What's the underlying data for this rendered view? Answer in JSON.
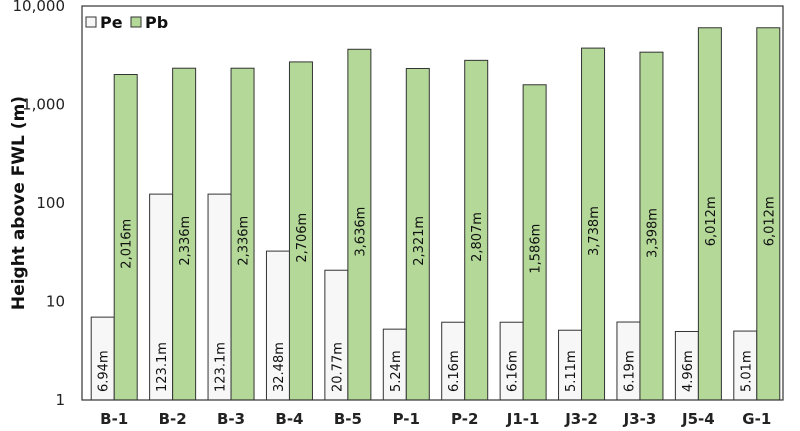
{
  "chart_data": {
    "type": "bar",
    "title": "",
    "xlabel": "",
    "ylabel": "Height above FWL (m)",
    "yscale": "log",
    "ylim": [
      1,
      10000
    ],
    "y_ticks": [
      "1",
      "10",
      "100",
      "1,000",
      "10,000"
    ],
    "grid": false,
    "legend_position": "top-left inside",
    "categories": [
      "B-1",
      "B-2",
      "B-3",
      "B-4",
      "B-5",
      "P-1",
      "P-2",
      "J1-1",
      "J3-2",
      "J3-3",
      "J5-4",
      "G-1"
    ],
    "series": [
      {
        "name": "Pe",
        "color": "#f7f7f7",
        "values": [
          6.94,
          123.1,
          123.1,
          32.48,
          20.77,
          5.24,
          6.16,
          6.16,
          5.11,
          6.19,
          4.96,
          5.01
        ],
        "labels": [
          "6.94m",
          "123.1m",
          "123.1m",
          "32.48m",
          "20.77m",
          "5.24m",
          "6.16m",
          "6.16m",
          "5.11m",
          "6.19m",
          "4.96m",
          "5.01m"
        ]
      },
      {
        "name": "Pb",
        "color": "#b3d898",
        "values": [
          2016,
          2336,
          2336,
          2706,
          3636,
          2321,
          2807,
          1586,
          3738,
          3398,
          6012,
          6012
        ],
        "labels": [
          "2,016m",
          "2,336m",
          "2,336m",
          "2,706m",
          "3,636m",
          "2,321m",
          "2,807m",
          "1,586m",
          "3,738m",
          "3,398m",
          "6,012m",
          "6,012m"
        ]
      }
    ]
  }
}
